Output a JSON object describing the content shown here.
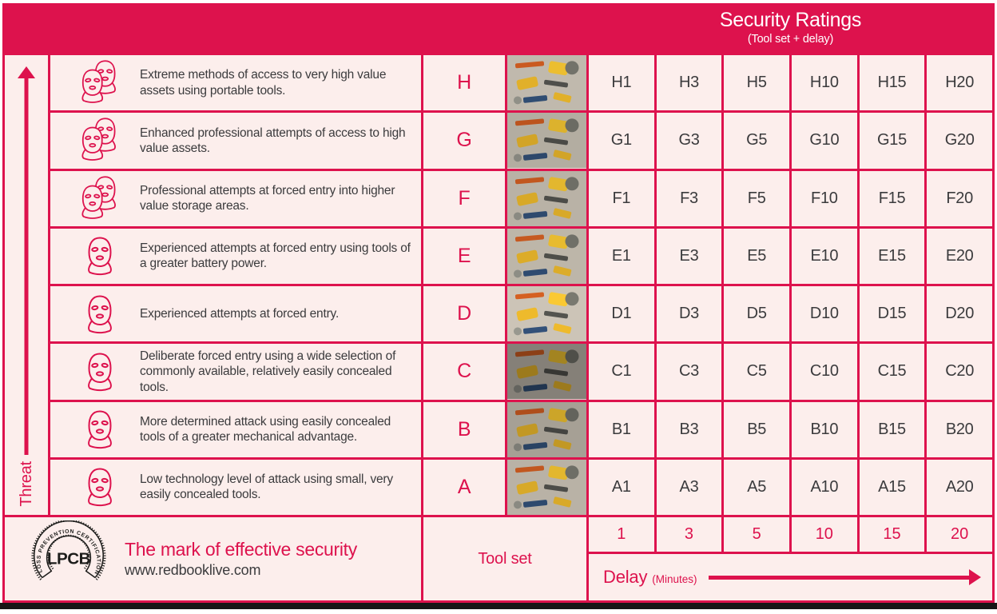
{
  "header": {
    "title": "Security Ratings",
    "subtitle": "(Tool set + delay)"
  },
  "threat_axis": {
    "label": "Threat"
  },
  "rows": [
    {
      "letter": "H",
      "icon": "double-mask",
      "description": "Extreme methods of access to very high value assets using portable tools.",
      "ratings": [
        "H1",
        "H3",
        "H5",
        "H10",
        "H15",
        "H20"
      ]
    },
    {
      "letter": "G",
      "icon": "double-mask",
      "description": "Enhanced professional attempts of access to high value assets.",
      "ratings": [
        "G1",
        "G3",
        "G5",
        "G10",
        "G15",
        "G20"
      ]
    },
    {
      "letter": "F",
      "icon": "double-mask",
      "description": "Professional attempts at forced entry into higher value storage areas.",
      "ratings": [
        "F1",
        "F3",
        "F5",
        "F10",
        "F15",
        "F20"
      ]
    },
    {
      "letter": "E",
      "icon": "single-mask",
      "description": "Experienced attempts at forced entry using tools of a greater battery power.",
      "ratings": [
        "E1",
        "E3",
        "E5",
        "E10",
        "E15",
        "E20"
      ]
    },
    {
      "letter": "D",
      "icon": "single-mask",
      "description": "Experienced attempts at forced entry.",
      "ratings": [
        "D1",
        "D3",
        "D5",
        "D10",
        "D15",
        "D20"
      ]
    },
    {
      "letter": "C",
      "icon": "single-mask",
      "description": "Deliberate forced entry using a wide selection of commonly available, relatively easily concealed tools.",
      "ratings": [
        "C1",
        "C3",
        "C5",
        "C10",
        "C15",
        "C20"
      ]
    },
    {
      "letter": "B",
      "icon": "single-mask",
      "description": "More determined attack using easily concealed tools of a greater mechanical advantage.",
      "ratings": [
        "B1",
        "B3",
        "B5",
        "B10",
        "B15",
        "B20"
      ]
    },
    {
      "letter": "A",
      "icon": "single-mask",
      "description": "Low technology level of attack using small, very easily concealed tools.",
      "ratings": [
        "A1",
        "A3",
        "A5",
        "A10",
        "A15",
        "A20"
      ]
    }
  ],
  "footer": {
    "logo_ring_text": "LOSS PREVENTION CERTIFICATION BOARD",
    "logo_text": "LPCB",
    "tagline": "The mark of effective security",
    "website": "www.redbooklive.com",
    "tool_set_label": "Tool set",
    "delay_label": "Delay",
    "delay_unit": "(Minutes)",
    "delay_values": [
      "1",
      "3",
      "5",
      "10",
      "15",
      "20"
    ]
  },
  "colors": {
    "crimson": "#DD124D",
    "pale_background": "#FCEEEC",
    "text_dark": "#3B3B3D"
  }
}
